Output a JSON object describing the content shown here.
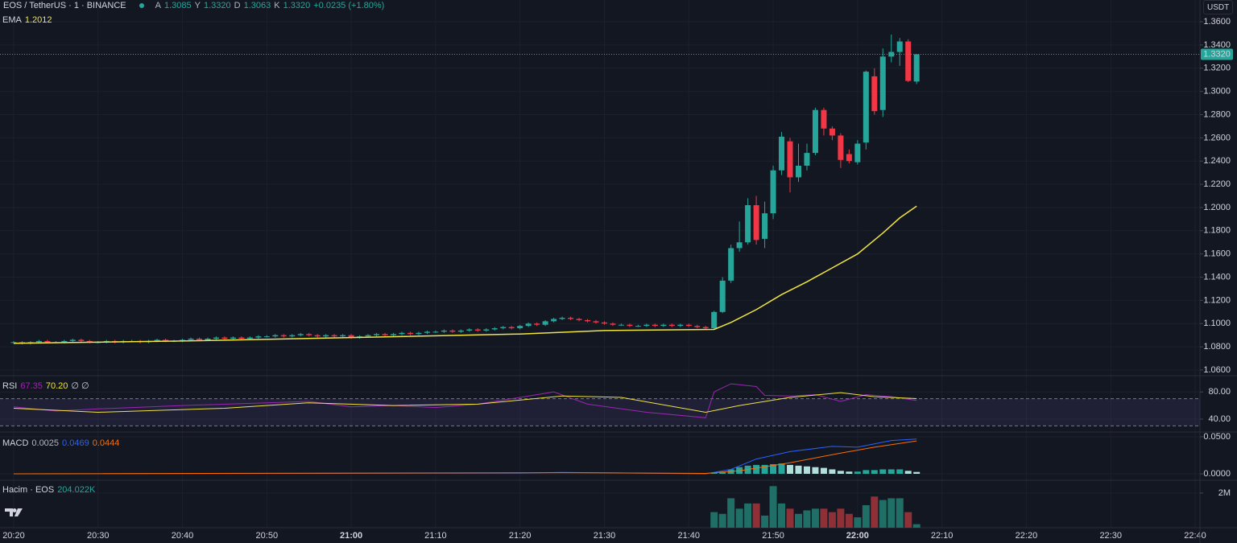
{
  "chart_data": {
    "type": "candlestick",
    "header": {
      "symbol": "EOS / TetherUS · 1 · BINANCE",
      "open_label": "A",
      "open": "1.3085",
      "high_label": "Y",
      "high": "1.3320",
      "low_label": "D",
      "low": "1.3063",
      "close_label": "K",
      "close": "1.3320",
      "change": "+0.0235 (+1.80%)",
      "currency": "USDT",
      "ema_label": "EMA",
      "ema_value": "1.2012"
    },
    "up_color": "#26a69a",
    "down_color": "#f23645",
    "grid": true,
    "xlim": [
      "20:18",
      "22:40"
    ],
    "xticks": [
      {
        "value": "20:20",
        "label": "20:20"
      },
      {
        "value": "20:30",
        "label": "20:30"
      },
      {
        "value": "20:40",
        "label": "20:40"
      },
      {
        "value": "20:50",
        "label": "20:50"
      },
      {
        "value": "21:00",
        "label": "21:00"
      },
      {
        "value": "21:10",
        "label": "21:10"
      },
      {
        "value": "21:20",
        "label": "21:20"
      },
      {
        "value": "21:30",
        "label": "21:30"
      },
      {
        "value": "21:40",
        "label": "21:40"
      },
      {
        "value": "21:50",
        "label": "21:50"
      },
      {
        "value": "22:00",
        "label": "22:00"
      },
      {
        "value": "22:10",
        "label": "22:10"
      },
      {
        "value": "22:20",
        "label": "22:20"
      },
      {
        "value": "22:30",
        "label": "22:30"
      },
      {
        "value": "22:40",
        "label": "22:40"
      }
    ],
    "bold_xticks": [
      "21:00",
      "22:00"
    ],
    "ylim": [
      1.055,
      1.37
    ],
    "yticks": [
      {
        "value": 1.06,
        "label": "1.0600"
      },
      {
        "value": 1.08,
        "label": "1.0800"
      },
      {
        "value": 1.1,
        "label": "1.1000"
      },
      {
        "value": 1.12,
        "label": "1.1200"
      },
      {
        "value": 1.14,
        "label": "1.1400"
      },
      {
        "value": 1.16,
        "label": "1.1600"
      },
      {
        "value": 1.18,
        "label": "1.1800"
      },
      {
        "value": 1.2,
        "label": "1.2000"
      },
      {
        "value": 1.22,
        "label": "1.2200"
      },
      {
        "value": 1.24,
        "label": "1.2400"
      },
      {
        "value": 1.26,
        "label": "1.2600"
      },
      {
        "value": 1.28,
        "label": "1.2800"
      },
      {
        "value": 1.3,
        "label": "1.3000"
      },
      {
        "value": 1.32,
        "label": "1.3200"
      },
      {
        "value": 1.34,
        "label": "1.3400"
      },
      {
        "value": 1.36,
        "label": "1.3600"
      }
    ],
    "last_price_label": "1.3320",
    "x": [
      "20:20",
      "20:21",
      "20:22",
      "20:23",
      "20:24",
      "20:25",
      "20:26",
      "20:27",
      "20:28",
      "20:29",
      "20:30",
      "20:31",
      "20:32",
      "20:33",
      "20:34",
      "20:35",
      "20:36",
      "20:37",
      "20:38",
      "20:39",
      "20:40",
      "20:41",
      "20:42",
      "20:43",
      "20:44",
      "20:45",
      "20:46",
      "20:47",
      "20:48",
      "20:49",
      "20:50",
      "20:51",
      "20:52",
      "20:53",
      "20:54",
      "20:55",
      "20:56",
      "20:57",
      "20:58",
      "20:59",
      "21:00",
      "21:01",
      "21:02",
      "21:03",
      "21:04",
      "21:05",
      "21:06",
      "21:07",
      "21:08",
      "21:09",
      "21:10",
      "21:11",
      "21:12",
      "21:13",
      "21:14",
      "21:15",
      "21:16",
      "21:17",
      "21:18",
      "21:19",
      "21:20",
      "21:21",
      "21:22",
      "21:23",
      "21:24",
      "21:25",
      "21:26",
      "21:27",
      "21:28",
      "21:29",
      "21:30",
      "21:31",
      "21:32",
      "21:33",
      "21:34",
      "21:35",
      "21:36",
      "21:37",
      "21:38",
      "21:39",
      "21:40",
      "21:41",
      "21:42",
      "21:43",
      "21:44",
      "21:45",
      "21:46",
      "21:47",
      "21:48",
      "21:49",
      "21:50",
      "21:51",
      "21:52",
      "21:53",
      "21:54",
      "21:55",
      "21:56",
      "21:57",
      "21:58",
      "21:59",
      "22:00",
      "22:01",
      "22:02",
      "22:03",
      "22:04",
      "22:05",
      "22:06",
      "22:07"
    ],
    "ohlc": [
      [
        1.084,
        1.085,
        1.083,
        1.084
      ],
      [
        1.084,
        1.085,
        1.082,
        1.083
      ],
      [
        1.083,
        1.085,
        1.082,
        1.084
      ],
      [
        1.084,
        1.086,
        1.083,
        1.085
      ],
      [
        1.085,
        1.086,
        1.083,
        1.084
      ],
      [
        1.084,
        1.085,
        1.083,
        1.084
      ],
      [
        1.084,
        1.086,
        1.083,
        1.085
      ],
      [
        1.085,
        1.087,
        1.084,
        1.086
      ],
      [
        1.086,
        1.087,
        1.084,
        1.085
      ],
      [
        1.085,
        1.086,
        1.083,
        1.084
      ],
      [
        1.084,
        1.085,
        1.083,
        1.084
      ],
      [
        1.084,
        1.086,
        1.083,
        1.085
      ],
      [
        1.085,
        1.086,
        1.083,
        1.084
      ],
      [
        1.084,
        1.086,
        1.083,
        1.085
      ],
      [
        1.085,
        1.086,
        1.084,
        1.085
      ],
      [
        1.085,
        1.086,
        1.083,
        1.084
      ],
      [
        1.084,
        1.086,
        1.083,
        1.085
      ],
      [
        1.085,
        1.087,
        1.084,
        1.086
      ],
      [
        1.086,
        1.087,
        1.084,
        1.085
      ],
      [
        1.085,
        1.086,
        1.084,
        1.085
      ],
      [
        1.085,
        1.087,
        1.084,
        1.086
      ],
      [
        1.086,
        1.088,
        1.085,
        1.087
      ],
      [
        1.087,
        1.088,
        1.085,
        1.086
      ],
      [
        1.086,
        1.088,
        1.085,
        1.087
      ],
      [
        1.087,
        1.089,
        1.086,
        1.088
      ],
      [
        1.088,
        1.089,
        1.086,
        1.087
      ],
      [
        1.087,
        1.089,
        1.086,
        1.088
      ],
      [
        1.088,
        1.089,
        1.086,
        1.087
      ],
      [
        1.087,
        1.089,
        1.086,
        1.088
      ],
      [
        1.088,
        1.09,
        1.087,
        1.089
      ],
      [
        1.089,
        1.09,
        1.088,
        1.089
      ],
      [
        1.089,
        1.091,
        1.088,
        1.09
      ],
      [
        1.09,
        1.091,
        1.088,
        1.089
      ],
      [
        1.089,
        1.091,
        1.088,
        1.09
      ],
      [
        1.09,
        1.092,
        1.089,
        1.091
      ],
      [
        1.091,
        1.092,
        1.089,
        1.09
      ],
      [
        1.09,
        1.091,
        1.088,
        1.089
      ],
      [
        1.089,
        1.091,
        1.088,
        1.09
      ],
      [
        1.09,
        1.091,
        1.088,
        1.089
      ],
      [
        1.089,
        1.091,
        1.088,
        1.09
      ],
      [
        1.09,
        1.091,
        1.087,
        1.088
      ],
      [
        1.088,
        1.09,
        1.087,
        1.089
      ],
      [
        1.089,
        1.091,
        1.088,
        1.09
      ],
      [
        1.09,
        1.092,
        1.089,
        1.091
      ],
      [
        1.091,
        1.092,
        1.089,
        1.09
      ],
      [
        1.09,
        1.092,
        1.089,
        1.091
      ],
      [
        1.091,
        1.093,
        1.09,
        1.092
      ],
      [
        1.092,
        1.093,
        1.09,
        1.091
      ],
      [
        1.091,
        1.093,
        1.09,
        1.092
      ],
      [
        1.092,
        1.094,
        1.091,
        1.093
      ],
      [
        1.093,
        1.094,
        1.092,
        1.093
      ],
      [
        1.093,
        1.095,
        1.092,
        1.094
      ],
      [
        1.094,
        1.095,
        1.092,
        1.093
      ],
      [
        1.093,
        1.095,
        1.092,
        1.094
      ],
      [
        1.094,
        1.096,
        1.093,
        1.095
      ],
      [
        1.095,
        1.096,
        1.093,
        1.094
      ],
      [
        1.094,
        1.096,
        1.093,
        1.095
      ],
      [
        1.095,
        1.097,
        1.094,
        1.096
      ],
      [
        1.096,
        1.098,
        1.095,
        1.097
      ],
      [
        1.097,
        1.098,
        1.095,
        1.096
      ],
      [
        1.096,
        1.099,
        1.095,
        1.098
      ],
      [
        1.098,
        1.101,
        1.097,
        1.1
      ],
      [
        1.1,
        1.101,
        1.098,
        1.099
      ],
      [
        1.099,
        1.103,
        1.098,
        1.102
      ],
      [
        1.102,
        1.105,
        1.101,
        1.104
      ],
      [
        1.104,
        1.106,
        1.103,
        1.105
      ],
      [
        1.105,
        1.106,
        1.103,
        1.104
      ],
      [
        1.104,
        1.105,
        1.102,
        1.103
      ],
      [
        1.103,
        1.104,
        1.101,
        1.102
      ],
      [
        1.102,
        1.103,
        1.1,
        1.101
      ],
      [
        1.101,
        1.102,
        1.099,
        1.1
      ],
      [
        1.1,
        1.101,
        1.098,
        1.099
      ],
      [
        1.099,
        1.1,
        1.098,
        1.099
      ],
      [
        1.099,
        1.1,
        1.097,
        1.098
      ],
      [
        1.098,
        1.099,
        1.097,
        1.098
      ],
      [
        1.098,
        1.1,
        1.097,
        1.099
      ],
      [
        1.099,
        1.1,
        1.097,
        1.098
      ],
      [
        1.098,
        1.1,
        1.097,
        1.099
      ],
      [
        1.099,
        1.1,
        1.097,
        1.098
      ],
      [
        1.098,
        1.1,
        1.097,
        1.099
      ],
      [
        1.099,
        1.1,
        1.097,
        1.098
      ],
      [
        1.098,
        1.099,
        1.096,
        1.097
      ],
      [
        1.097,
        1.098,
        1.095,
        1.096
      ],
      [
        1.096,
        1.111,
        1.095,
        1.11
      ],
      [
        1.11,
        1.14,
        1.109,
        1.137
      ],
      [
        1.137,
        1.168,
        1.135,
        1.165
      ],
      [
        1.165,
        1.188,
        1.162,
        1.17
      ],
      [
        1.17,
        1.208,
        1.168,
        1.202
      ],
      [
        1.202,
        1.21,
        1.168,
        1.172
      ],
      [
        1.173,
        1.205,
        1.165,
        1.195
      ],
      [
        1.195,
        1.236,
        1.19,
        1.232
      ],
      [
        1.232,
        1.265,
        1.228,
        1.261
      ],
      [
        1.257,
        1.26,
        1.213,
        1.226
      ],
      [
        1.226,
        1.255,
        1.222,
        1.236
      ],
      [
        1.236,
        1.255,
        1.232,
        1.247
      ],
      [
        1.247,
        1.286,
        1.245,
        1.284
      ],
      [
        1.284,
        1.286,
        1.262,
        1.268
      ],
      [
        1.268,
        1.27,
        1.258,
        1.262
      ],
      [
        1.262,
        1.264,
        1.234,
        1.241
      ],
      [
        1.246,
        1.25,
        1.238,
        1.24
      ],
      [
        1.239,
        1.258,
        1.237,
        1.255
      ],
      [
        1.256,
        1.318,
        1.25,
        1.317
      ],
      [
        1.313,
        1.32,
        1.28,
        1.283
      ],
      [
        1.284,
        1.337,
        1.278,
        1.33
      ],
      [
        1.33,
        1.349,
        1.325,
        1.334
      ],
      [
        1.334,
        1.346,
        1.322,
        1.343
      ],
      [
        1.343,
        1.345,
        1.308,
        1.309
      ],
      [
        1.3085,
        1.332,
        1.3063,
        1.332
      ]
    ],
    "ema": {
      "color": "#f0e442",
      "x": [
        "20:20",
        "20:40",
        "21:00",
        "21:20",
        "21:30",
        "21:43",
        "21:45",
        "21:48",
        "21:51",
        "21:54",
        "21:57",
        "22:00",
        "22:03",
        "22:05",
        "22:07"
      ],
      "values": [
        1.083,
        1.085,
        1.088,
        1.091,
        1.094,
        1.095,
        1.101,
        1.112,
        1.125,
        1.136,
        1.148,
        1.16,
        1.178,
        1.191,
        1.2012
      ]
    },
    "rsi": {
      "label": "RSI",
      "value": "67.35",
      "ma_value": "70.20",
      "extra": "∅ ∅",
      "ylim": [
        21,
        104
      ],
      "yticks": [
        {
          "value": 40,
          "label": "40.00"
        },
        {
          "value": 80,
          "label": "80.00"
        }
      ],
      "band": [
        30,
        70
      ],
      "band_color": "#7e57c2",
      "line": {
        "color": "#9c27b0",
        "x": [
          "20:20",
          "20:25",
          "20:30",
          "20:40",
          "20:50",
          "20:55",
          "21:00",
          "21:05",
          "21:10",
          "21:15",
          "21:20",
          "21:24",
          "21:28",
          "21:35",
          "21:42",
          "21:43",
          "21:45",
          "21:48",
          "21:49",
          "21:52",
          "21:55",
          "21:58",
          "22:01",
          "22:04",
          "22:07"
        ],
        "values": [
          58,
          52,
          55,
          60,
          64,
          66,
          58,
          60,
          57,
          62,
          72,
          80,
          62,
          50,
          42,
          80,
          92,
          88,
          75,
          74,
          76,
          66,
          76,
          73,
          67.35
        ]
      },
      "ma": {
        "color": "#f0e442",
        "x": [
          "20:20",
          "20:30",
          "20:45",
          "20:55",
          "21:05",
          "21:15",
          "21:25",
          "21:32",
          "21:42",
          "21:46",
          "21:52",
          "21:58",
          "22:02",
          "22:07"
        ],
        "values": [
          56,
          50,
          56,
          64,
          60,
          62,
          74,
          72,
          50,
          60,
          72,
          79,
          73,
          70.2
        ]
      }
    },
    "macd": {
      "label": "MACD",
      "hist_value": "0.0025",
      "macd_value": "0.0469",
      "signal_value": "0.0444",
      "ylim": [
        -0.0087,
        0.0565
      ],
      "yticks": [
        {
          "value": 0,
          "label": "0.0000"
        },
        {
          "value": 0.05,
          "label": "0.0500"
        }
      ],
      "macd": {
        "color": "#2962ff",
        "x": [
          "20:20",
          "21:20",
          "21:25",
          "21:42",
          "21:45",
          "21:48",
          "21:52",
          "21:57",
          "22:00",
          "22:04",
          "22:07"
        ],
        "values": [
          0,
          0.001,
          0.002,
          0,
          0.006,
          0.02,
          0.03,
          0.037,
          0.036,
          0.045,
          0.0469
        ]
      },
      "signal": {
        "color": "#ff6d00",
        "x": [
          "20:20",
          "21:25",
          "21:42",
          "21:46",
          "21:52",
          "21:58",
          "22:02",
          "22:07"
        ],
        "values": [
          0,
          0.0015,
          0.0005,
          0.004,
          0.015,
          0.028,
          0.036,
          0.0444
        ]
      },
      "hist": {
        "rising_color": "#26a69a",
        "falling_color": "#b2dfdb",
        "x": [
          "21:43",
          "21:44",
          "21:45",
          "21:46",
          "21:47",
          "21:48",
          "21:49",
          "21:50",
          "21:51",
          "21:52",
          "21:53",
          "21:54",
          "21:55",
          "21:56",
          "21:57",
          "21:58",
          "21:59",
          "22:00",
          "22:01",
          "22:02",
          "22:03",
          "22:04",
          "22:05",
          "22:06",
          "22:07"
        ],
        "values": [
          0.001,
          0.003,
          0.006,
          0.009,
          0.011,
          0.012,
          0.012,
          0.013,
          0.014,
          0.012,
          0.011,
          0.01,
          0.009,
          0.008,
          0.006,
          0.004,
          0.003,
          0.003,
          0.005,
          0.005,
          0.006,
          0.006,
          0.006,
          0.004,
          0.0025
        ]
      }
    },
    "volume": {
      "label": "Hacim · EOS",
      "value": "204.022K",
      "ylim": [
        0,
        2740000
      ],
      "yticks": [
        {
          "value": 2000000,
          "label": "2M"
        }
      ],
      "up_color": "#1f6f66",
      "down_color": "#8f2f36",
      "x": [
        "21:43",
        "21:44",
        "21:45",
        "21:46",
        "21:47",
        "21:48",
        "21:49",
        "21:50",
        "21:51",
        "21:52",
        "21:53",
        "21:54",
        "21:55",
        "21:56",
        "21:57",
        "21:58",
        "21:59",
        "22:00",
        "22:01",
        "22:02",
        "22:03",
        "22:04",
        "22:05",
        "22:06",
        "22:07"
      ],
      "values": [
        900000,
        800000,
        1700000,
        1100000,
        1400000,
        1400000,
        700000,
        2400000,
        1400000,
        1100000,
        800000,
        1000000,
        1100000,
        1100000,
        900000,
        1100000,
        800000,
        600000,
        1300000,
        1800000,
        1600000,
        1700000,
        1700000,
        900000,
        204022
      ]
    }
  }
}
